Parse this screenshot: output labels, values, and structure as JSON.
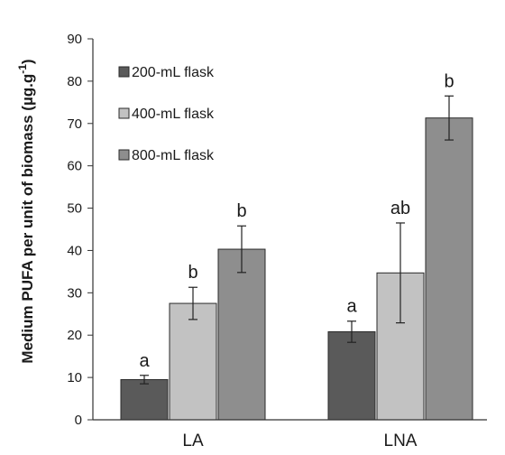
{
  "chart_data": {
    "type": "bar",
    "ylabel": "Medium PUFA per unit of biomass (µg.g",
    "ylabel_sup": "-1",
    "ylabel_close": ")",
    "ylim": [
      0,
      90
    ],
    "yticks": [
      0,
      10,
      20,
      30,
      40,
      50,
      60,
      70,
      80,
      90
    ],
    "categories": [
      "LA",
      "LNA"
    ],
    "legend_position": "top-left",
    "series": [
      {
        "name": "200-mL flask",
        "color": "#5a5a5a",
        "values": [
          9.5,
          20.8
        ],
        "errors": [
          1.0,
          2.5
        ],
        "letters": [
          "a",
          "a"
        ]
      },
      {
        "name": "400-mL flask",
        "color": "#c2c2c2",
        "values": [
          27.5,
          34.7
        ],
        "errors": [
          3.8,
          11.8
        ],
        "letters": [
          "b",
          "ab"
        ]
      },
      {
        "name": "800-mL flask",
        "color": "#8e8e8e",
        "values": [
          40.3,
          71.3
        ],
        "errors": [
          5.5,
          5.2
        ],
        "letters": [
          "b",
          "b"
        ]
      }
    ]
  }
}
